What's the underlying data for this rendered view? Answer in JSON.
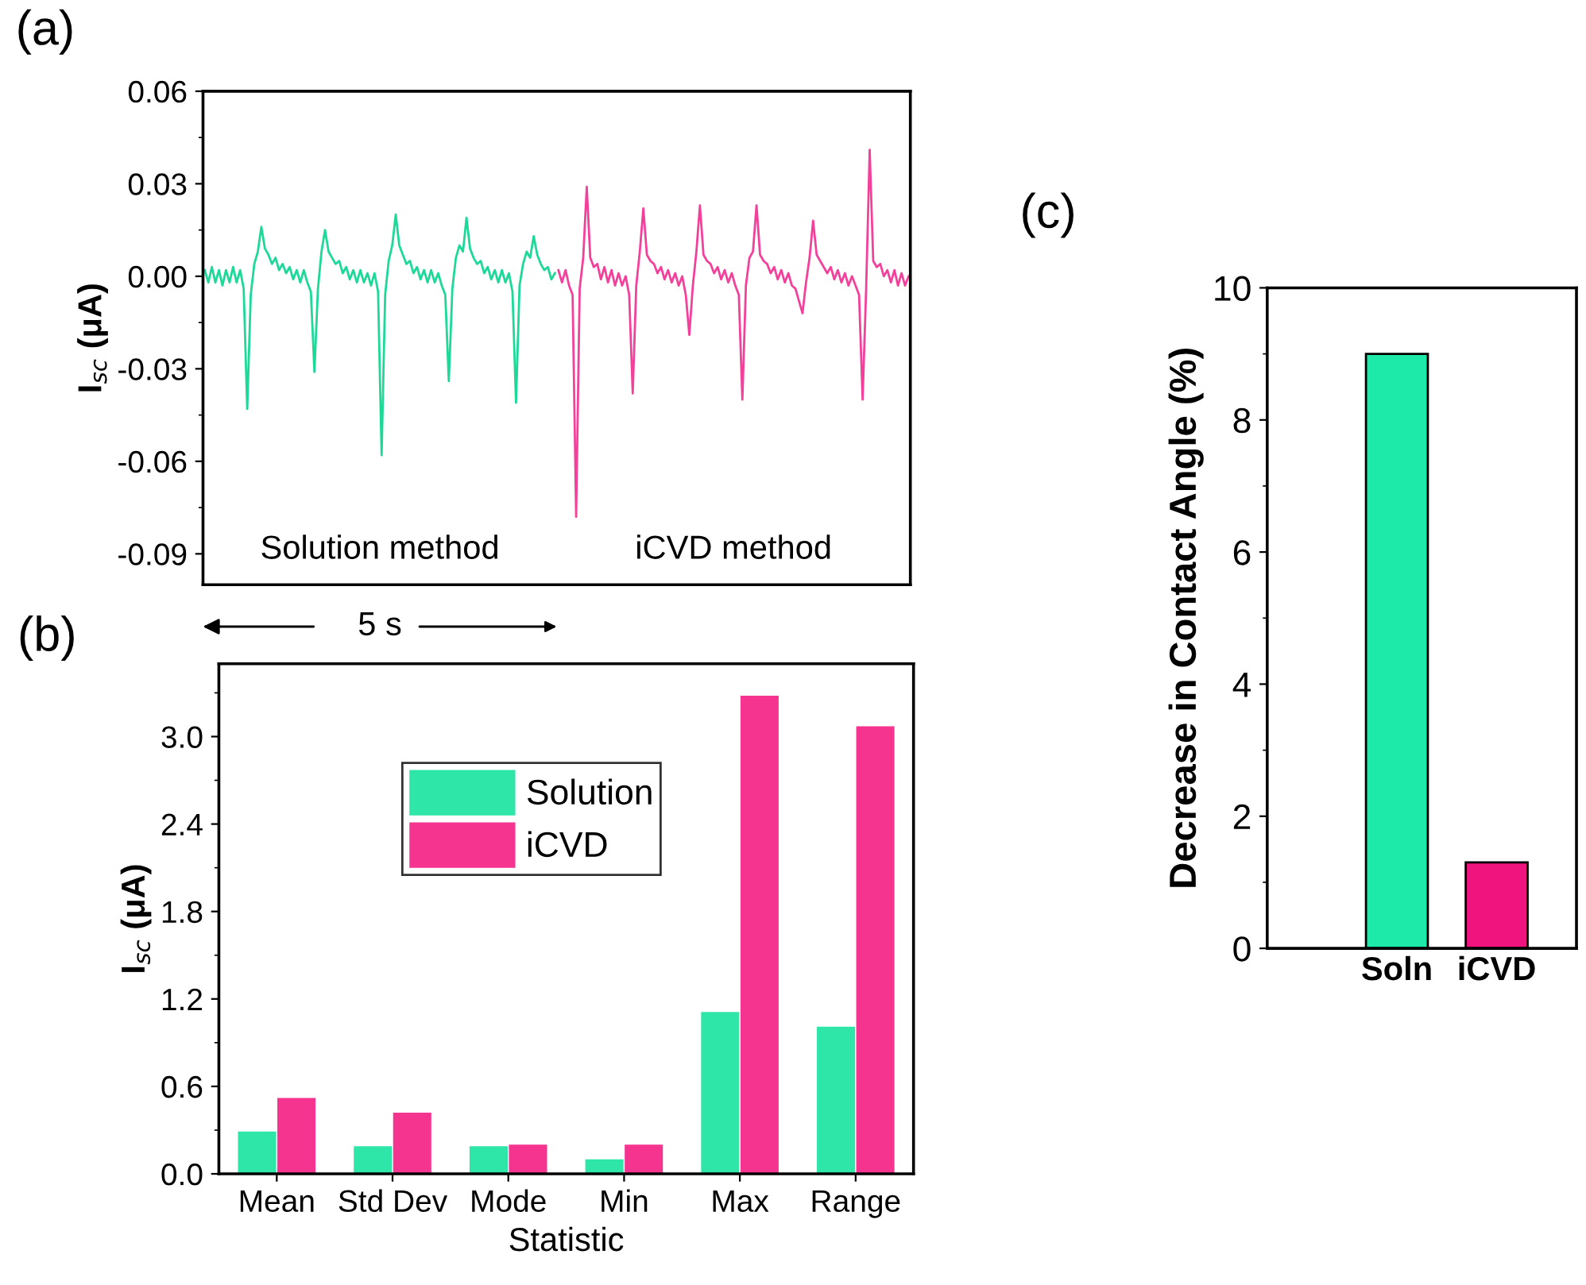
{
  "chart_data": [
    {
      "type": "line",
      "title": "(a)",
      "ylabel": "I$_{sc}$ (μA)",
      "categories": [
        null,
        null,
        null,
        null,
        null,
        null,
        null,
        null,
        null,
        null,
        null,
        null,
        null,
        null,
        null,
        null,
        null,
        null,
        null,
        null,
        null,
        null,
        null,
        null,
        null,
        null,
        null,
        null,
        null,
        null,
        null,
        null,
        null,
        null,
        null,
        null,
        null,
        null,
        null,
        null,
        null,
        null,
        null,
        null,
        null,
        null,
        null,
        null,
        null,
        null,
        null,
        null,
        null,
        null,
        null,
        null,
        null,
        null,
        null,
        null,
        null,
        null,
        null,
        null,
        null,
        null,
        null,
        null,
        null,
        null,
        null,
        null,
        null,
        null,
        null,
        null,
        null,
        null,
        null,
        null,
        null,
        null,
        null,
        null,
        null,
        null,
        null,
        null,
        null,
        null,
        null,
        null,
        null,
        null,
        null,
        null,
        null,
        null,
        null,
        null,
        null,
        null,
        null,
        null,
        null,
        null,
        null,
        null,
        null,
        null,
        null,
        null,
        null,
        null,
        null,
        null,
        null,
        null,
        null,
        null,
        null,
        null,
        null,
        null,
        null,
        null,
        null,
        null,
        null,
        null,
        null,
        null,
        null,
        null,
        null,
        null,
        null,
        null,
        null,
        null,
        null,
        null,
        null,
        null,
        null,
        null,
        null,
        null,
        null,
        null,
        null,
        null,
        null,
        null,
        null,
        null,
        null,
        null,
        null,
        null,
        null,
        null,
        null,
        null,
        null,
        null,
        null,
        null,
        null,
        null,
        null,
        null,
        null,
        null,
        null,
        null,
        null,
        null,
        null,
        null,
        null,
        null,
        null,
        null,
        null,
        null,
        null,
        null,
        null,
        null,
        null,
        null,
        null,
        null,
        null,
        null,
        null,
        null,
        null,
        null
      ],
      "series": [
        {
          "color": "#1dd998",
          "values": [
            0.002,
            -0.002,
            0.003,
            -0.002,
            0.002,
            -0.003,
            0.002,
            -0.002,
            0.003,
            -0.002,
            0.002,
            -0.004,
            -0.043,
            -0.006,
            0.004,
            0.008,
            0.016,
            0.009,
            0.007,
            0.004,
            0.006,
            0.002,
            0.004,
            0.001,
            0.003,
            -0.001,
            0.002,
            -0.002,
            0.002,
            -0.002,
            -0.005,
            -0.031,
            -0.004,
            0.008,
            0.015,
            0.008,
            0.006,
            0.004,
            0.005,
            0.001,
            0.003,
            -0.001,
            0.002,
            -0.002,
            0.002,
            -0.002,
            0.001,
            -0.003,
            0.001,
            -0.005,
            -0.058,
            -0.006,
            0.005,
            0.01,
            0.02,
            0.01,
            0.007,
            0.004,
            0.005,
            0.001,
            0.003,
            -0.001,
            0.002,
            -0.002,
            0.002,
            -0.002,
            0.001,
            -0.003,
            -0.006,
            -0.034,
            -0.004,
            0.006,
            0.01,
            0.008,
            0.019,
            0.009,
            0.006,
            0.004,
            0.005,
            0.001,
            0.003,
            -0.001,
            0.002,
            -0.002,
            0.002,
            -0.002,
            0.001,
            -0.005,
            -0.041,
            -0.003,
            0.004,
            0.008,
            0.006,
            0.013,
            0.007,
            0.004,
            0.002,
            0.003,
            -0.001,
            0.001,
            null,
            null,
            null,
            null,
            null,
            null,
            null,
            null,
            null,
            null,
            null,
            null,
            null,
            null,
            null,
            null,
            null,
            null,
            null,
            null,
            null,
            null,
            null,
            null,
            null,
            null,
            null,
            null,
            null,
            null,
            null,
            null,
            null,
            null,
            null,
            null,
            null,
            null,
            null,
            null,
            null,
            null,
            null,
            null,
            null,
            null,
            null,
            null,
            null,
            null,
            null,
            null,
            null,
            null,
            null,
            null,
            null,
            null,
            null,
            null,
            null,
            null,
            null,
            null,
            null,
            null,
            null,
            null,
            null,
            null,
            null,
            null,
            null,
            null,
            null,
            null,
            null,
            null,
            null,
            null,
            null,
            null,
            null,
            null,
            null,
            null,
            null,
            null,
            null,
            null,
            null,
            null,
            null,
            null,
            null,
            null,
            null,
            null,
            null,
            null
          ]
        },
        {
          "color": "#f2409b",
          "values": [
            null,
            null,
            null,
            null,
            null,
            null,
            null,
            null,
            null,
            null,
            null,
            null,
            null,
            null,
            null,
            null,
            null,
            null,
            null,
            null,
            null,
            null,
            null,
            null,
            null,
            null,
            null,
            null,
            null,
            null,
            null,
            null,
            null,
            null,
            null,
            null,
            null,
            null,
            null,
            null,
            null,
            null,
            null,
            null,
            null,
            null,
            null,
            null,
            null,
            null,
            null,
            null,
            null,
            null,
            null,
            null,
            null,
            null,
            null,
            null,
            null,
            null,
            null,
            null,
            null,
            null,
            null,
            null,
            null,
            null,
            null,
            null,
            null,
            null,
            null,
            null,
            null,
            null,
            null,
            null,
            null,
            null,
            null,
            null,
            null,
            null,
            null,
            null,
            null,
            null,
            null,
            null,
            null,
            null,
            null,
            null,
            null,
            null,
            null,
            null,
            0.002,
            -0.002,
            0.002,
            -0.003,
            -0.006,
            -0.078,
            -0.004,
            0.006,
            0.029,
            0.006,
            0.003,
            0.004,
            -0.001,
            0.003,
            -0.002,
            0.002,
            -0.003,
            0.001,
            -0.003,
            0.0,
            -0.006,
            -0.038,
            -0.003,
            0.008,
            0.022,
            0.007,
            0.005,
            0.004,
            0.001,
            0.003,
            -0.001,
            0.002,
            -0.002,
            0.001,
            -0.003,
            0.0,
            -0.006,
            -0.019,
            -0.003,
            0.008,
            0.023,
            0.007,
            0.005,
            0.004,
            0.001,
            0.003,
            -0.001,
            0.002,
            -0.002,
            0.001,
            -0.003,
            -0.006,
            -0.04,
            -0.003,
            0.006,
            0.008,
            0.023,
            0.007,
            0.005,
            0.004,
            0.001,
            0.003,
            -0.001,
            0.002,
            -0.002,
            0.001,
            -0.003,
            -0.004,
            -0.008,
            -0.012,
            -0.002,
            0.006,
            0.018,
            0.007,
            0.005,
            0.003,
            0.001,
            0.003,
            -0.001,
            0.002,
            -0.002,
            0.001,
            -0.003,
            0.0,
            -0.003,
            -0.006,
            -0.04,
            -0.004,
            0.041,
            0.005,
            0.003,
            0.004,
            0.0,
            0.002,
            -0.002,
            0.002,
            -0.003,
            0.001,
            -0.003,
            0.0
          ]
        }
      ],
      "ylim": [
        -0.1,
        0.06
      ],
      "yticks": [
        {
          "value": -0.09,
          "label": "-0.09"
        },
        {
          "value": -0.06,
          "label": "-0.06"
        },
        {
          "value": -0.03,
          "label": "-0.03"
        },
        {
          "value": 0.0,
          "label": "0.00"
        },
        {
          "value": 0.03,
          "label": "0.03"
        },
        {
          "value": 0.06,
          "label": "0.06"
        }
      ],
      "tick_labels": "y",
      "grid": false,
      "legend": false,
      "line_style": "solid",
      "annotations": [
        "Solution method",
        "iCVD method",
        "5 s"
      ]
    },
    {
      "type": "bar",
      "title": "(b)",
      "xlabel": "Statistic",
      "ylabel": "I$_{sc}$ (μA)",
      "categories": [
        "Mean",
        "Std Dev",
        "Mode",
        "Min",
        "Max",
        "Range"
      ],
      "series": [
        {
          "name": "Solution",
          "color": "#2ee6a8",
          "values": [
            0.29,
            0.19,
            0.19,
            0.1,
            1.11,
            1.01
          ]
        },
        {
          "name": "iCVD",
          "color": "#f5348f",
          "values": [
            0.52,
            0.42,
            0.2,
            0.2,
            3.28,
            3.07
          ]
        }
      ],
      "ylim": [
        0,
        3.5
      ],
      "yticks": [
        {
          "value": 0.0,
          "label": "0.0"
        },
        {
          "value": 0.6,
          "label": "0.6"
        },
        {
          "value": 1.2,
          "label": "1.2"
        },
        {
          "value": 1.8,
          "label": "1.8"
        },
        {
          "value": 2.4,
          "label": "2.4"
        },
        {
          "value": 3.0,
          "label": "3.0"
        }
      ],
      "grid": false,
      "legend": "top"
    },
    {
      "type": "bar",
      "title": "(c)",
      "ylabel": "Decrease in Contact Angle (%)",
      "categories": [
        "Soln",
        "iCVD"
      ],
      "values": [
        9.0,
        1.3
      ],
      "colors": [
        "#1de9a8",
        "#f0147f"
      ],
      "ylim": [
        0,
        10
      ],
      "yticks": [
        0,
        2,
        4,
        6,
        8,
        10
      ],
      "grid": false,
      "legend": false
    }
  ]
}
